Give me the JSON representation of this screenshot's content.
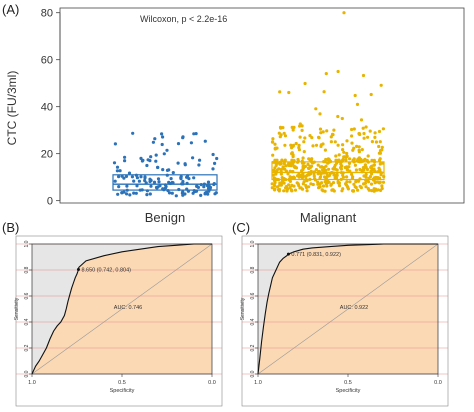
{
  "chart_data": [
    {
      "panel": "(A)",
      "type": "scatter",
      "subtype": "jittered dot plot with boxplot",
      "annotation": "Wilcoxon, p < 2.2e-16",
      "ylabel": "CTC (FU/3ml)",
      "xlabel": "",
      "categories": [
        "Benign",
        "Malignant"
      ],
      "yticks": [
        0,
        20,
        40,
        60,
        80
      ],
      "ylim": [
        -1,
        82
      ],
      "grid": false,
      "box": [
        {
          "category": "Benign",
          "q1": 4.5,
          "median": 7,
          "q3": 11
        },
        {
          "category": "Malignant",
          "q1": 9,
          "median": 12,
          "q3": 16.5
        }
      ],
      "colors": {
        "Benign": "#2b72b8",
        "Malignant": "#e8b400"
      }
    },
    {
      "panel": "(B)",
      "type": "line",
      "subtype": "ROC curve",
      "xlabel": "Specificity",
      "ylabel": "Sensitivity",
      "xticks": [
        "1.0",
        "0.5",
        "0.0"
      ],
      "yticks": [
        "0.0",
        "0.2",
        "0.4",
        "0.6",
        "0.8",
        "1.0"
      ],
      "xlim": [
        1,
        0
      ],
      "ylim": [
        0,
        1
      ],
      "threshold_label": "8.650 (0.742, 0.804)",
      "threshold_point": {
        "specificity": 0.742,
        "sensitivity": 0.804
      },
      "auc_label": "AUC: 0.746",
      "series": [
        {
          "specificity": [
            1.0,
            0.98,
            0.96,
            0.94,
            0.92,
            0.9,
            0.88,
            0.86,
            0.84,
            0.82,
            0.81,
            0.8,
            0.79,
            0.78,
            0.77,
            0.76,
            0.75,
            0.745,
            0.742,
            0.74,
            0.7,
            0.6,
            0.5,
            0.4,
            0.3,
            0.2,
            0.1,
            0.0
          ],
          "sensitivity": [
            0.0,
            0.06,
            0.1,
            0.15,
            0.2,
            0.27,
            0.33,
            0.37,
            0.4,
            0.45,
            0.5,
            0.56,
            0.61,
            0.66,
            0.7,
            0.74,
            0.77,
            0.79,
            0.804,
            0.82,
            0.87,
            0.91,
            0.94,
            0.96,
            0.98,
            0.99,
            1.0,
            1.0
          ]
        }
      ]
    },
    {
      "panel": "(C)",
      "type": "line",
      "subtype": "ROC curve",
      "xlabel": "Specificity",
      "ylabel": "Sensitivity",
      "xticks": [
        "1.0",
        "0.5",
        "0.0"
      ],
      "yticks": [
        "0.0",
        "0.2",
        "0.4",
        "0.6",
        "0.8",
        "1.0"
      ],
      "xlim": [
        1,
        0
      ],
      "ylim": [
        0,
        1
      ],
      "threshold_label": "0.771 (0.831, 0.922)",
      "threshold_point": {
        "specificity": 0.831,
        "sensitivity": 0.922
      },
      "auc_label": "AUC: 0.922",
      "series": [
        {
          "specificity": [
            1.0,
            0.99,
            0.98,
            0.97,
            0.96,
            0.95,
            0.94,
            0.93,
            0.92,
            0.9,
            0.88,
            0.86,
            0.84,
            0.831,
            0.8,
            0.75,
            0.7,
            0.6,
            0.5,
            0.4,
            0.3,
            0.2,
            0.1,
            0.0
          ],
          "sensitivity": [
            0.0,
            0.12,
            0.25,
            0.36,
            0.46,
            0.55,
            0.62,
            0.68,
            0.74,
            0.8,
            0.86,
            0.89,
            0.91,
            0.922,
            0.94,
            0.96,
            0.97,
            0.98,
            0.99,
            0.995,
            1.0,
            1.0,
            1.0,
            1.0
          ]
        }
      ]
    }
  ]
}
